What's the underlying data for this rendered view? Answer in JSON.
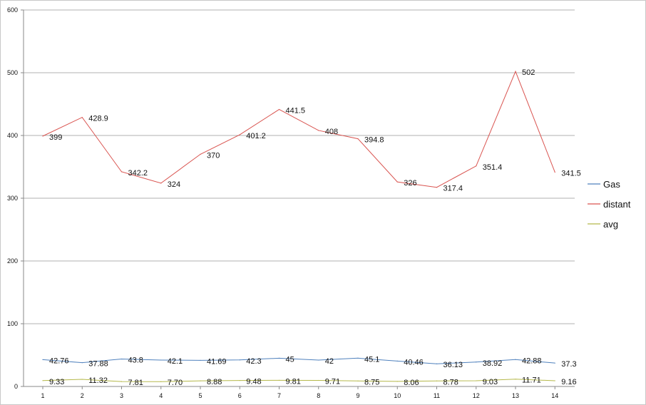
{
  "chart_data": {
    "type": "line",
    "title": "",
    "xlabel": "",
    "ylabel": "",
    "categories": [
      "1",
      "2",
      "3",
      "4",
      "5",
      "6",
      "7",
      "8",
      "9",
      "10",
      "11",
      "12",
      "13",
      "14"
    ],
    "ylim": [
      0,
      600
    ],
    "yticks": [
      0,
      100,
      200,
      300,
      400,
      500,
      600
    ],
    "grid": "horizontal",
    "legend": "right",
    "series": [
      {
        "name": "Gas",
        "color": "#4f81bd",
        "values": [
          42.76,
          37.88,
          43.8,
          42.1,
          41.69,
          42.3,
          45,
          42,
          45.1,
          40.46,
          36.13,
          38.92,
          42.88,
          37.3
        ],
        "labels": [
          "42.76",
          "37.88",
          "43.8",
          "42.1",
          "41.69",
          "42.3",
          "45",
          "42",
          "45.1",
          "40.46",
          "36.13",
          "38.92",
          "42.88",
          "37.3"
        ]
      },
      {
        "name": "distant",
        "color": "#d9534f",
        "values": [
          399,
          428.9,
          342.2,
          324,
          370,
          401.2,
          441.5,
          408,
          394.8,
          326,
          317.4,
          351.4,
          502,
          341.5
        ],
        "labels": [
          "399",
          "428.9",
          "342.2",
          "324",
          "370",
          "401.2",
          "441.5",
          "408",
          "394.8",
          "326",
          "317.4",
          "351.4",
          "502",
          "341.5"
        ]
      },
      {
        "name": "avg",
        "color": "#b5b84a",
        "values": [
          9.33,
          11.32,
          7.81,
          7.7,
          8.88,
          9.48,
          9.81,
          9.71,
          8.75,
          8.06,
          8.78,
          9.03,
          11.71,
          9.16
        ],
        "labels": [
          "9.33",
          "11.32",
          "7.81",
          "7.70",
          "8.88",
          "9.48",
          "9.81",
          "9.71",
          "8.75",
          "8.06",
          "8.78",
          "9.03",
          "11.71",
          "9.16"
        ]
      }
    ]
  }
}
